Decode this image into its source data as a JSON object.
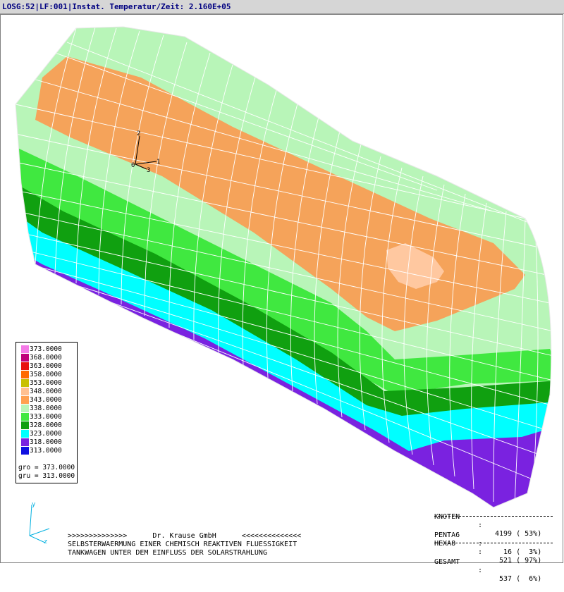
{
  "window": {
    "title": "LOSG:52|LF:001|Instat. Temperatur/Zeit: 2.160E+05"
  },
  "colors": {
    "c373": "#f47ae6",
    "c368": "#c0007a",
    "c363": "#e81010",
    "c358": "#ff6a00",
    "c353": "#c8c000",
    "c348": "#ffb080",
    "c343": "#f09850",
    "c338": "#ffa050",
    "c333": "#b8f5b8",
    "c328": "#40e840",
    "c323": "#10a010",
    "c318": "#00ffff",
    "c313": "#2010e0",
    "mesh": "#ffffff"
  },
  "legend": {
    "entries": [
      {
        "value": "373.0000",
        "color": "#f47ae6"
      },
      {
        "value": "368.0000",
        "color": "#c0007a"
      },
      {
        "value": "363.0000",
        "color": "#e81010"
      },
      {
        "value": "358.0000",
        "color": "#ff6a00"
      },
      {
        "value": "353.0000",
        "color": "#c8c000"
      },
      {
        "value": "348.0000",
        "color": "#ffc090"
      },
      {
        "value": "343.0000",
        "color": "#ffa050"
      },
      {
        "value": "338.0000",
        "color": "#b8f5b8"
      },
      {
        "value": "333.0000",
        "color": "#40e840"
      },
      {
        "value": "328.0000",
        "color": "#10a010"
      },
      {
        "value": "323.0000",
        "color": "#00ffff"
      },
      {
        "value": "318.0000",
        "color": "#7a22e0"
      },
      {
        "value": "313.0000",
        "color": "#1010e0"
      }
    ],
    "gro": "gro = 373.0000",
    "gru": "gru = 313.0000"
  },
  "triad": {
    "ax1": "1",
    "ax2": "2",
    "ax3": "3",
    "origin": "0"
  },
  "global_axes": {
    "y": "y",
    "z": "z"
  },
  "caption": {
    "line1": ">>>>>>>>>>>>>>      Dr. Krause GmbH      <<<<<<<<<<<<<<",
    "line2": "SELBSTERWAERMUNG EINER CHEMISCH REAKTIVEN FLUESSIGKEIT",
    "line3": "TANKWAGEN UNTER DEM EINFLUSS DER SOLARSTRAHLUNG"
  },
  "stats": {
    "knoten": {
      "label": "KNOTEN",
      "value": "4199 ( 53%)"
    },
    "penta6": {
      "label": "PENTA6",
      "value": "  16 (  3%)"
    },
    "hexa8": {
      "label": "HEXA8",
      "value": " 521 ( 97%)"
    },
    "gesamt": {
      "label": "GESAMT",
      "value": " 537 (  6%)"
    },
    "colon": ":"
  }
}
